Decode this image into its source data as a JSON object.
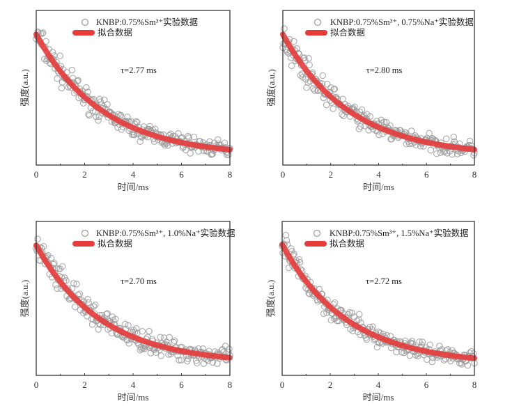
{
  "chart_data": [
    {
      "type": "scatter",
      "xlabel": "时间/ms",
      "ylabel": "强度(a.u.)",
      "xlim": [
        0,
        8
      ],
      "xticks": [
        "0",
        "2",
        "4",
        "6",
        "8"
      ],
      "legend": {
        "placement": "top",
        "entries": [
          "KNBP:0.75%Sm³⁺实验数据",
          "拟合数据"
        ]
      },
      "annotation": "τ=2.77 ms",
      "tau_ms": 2.77,
      "fit": {
        "amplitude": 0.79,
        "offset": 0.055
      },
      "noise": 0.035,
      "colors": {
        "data": "#9a9a9a",
        "fit": "#e63b3b"
      }
    },
    {
      "type": "scatter",
      "xlabel": "时间/ms",
      "ylabel": "强度(a.u.)",
      "xlim": [
        0,
        8
      ],
      "xticks": [
        "0",
        "2",
        "4",
        "6",
        "8"
      ],
      "legend": {
        "placement": "top",
        "entries": [
          "KNBP:0.75%Sm³⁺, 0.75%Na⁺实验数据",
          "拟合数据"
        ]
      },
      "annotation": "τ=2.80 ms",
      "tau_ms": 2.8,
      "fit": {
        "amplitude": 0.79,
        "offset": 0.055
      },
      "noise": 0.035,
      "colors": {
        "data": "#9a9a9a",
        "fit": "#e63b3b"
      }
    },
    {
      "type": "scatter",
      "xlabel": "时间/ms",
      "ylabel": "强度(a.u.)",
      "xlim": [
        0,
        8
      ],
      "xticks": [
        "0",
        "2",
        "4",
        "6",
        "8"
      ],
      "legend": {
        "placement": "top",
        "entries": [
          "KNBP:0.75%Sm³⁺, 1.0%Na⁺实验数据",
          "拟合数据"
        ]
      },
      "annotation": "τ=2.70 ms",
      "tau_ms": 2.7,
      "fit": {
        "amplitude": 0.77,
        "offset": 0.075
      },
      "noise": 0.04,
      "colors": {
        "data": "#9a9a9a",
        "fit": "#e63b3b"
      }
    },
    {
      "type": "scatter",
      "xlabel": "时间/ms",
      "ylabel": "强度(a.u.)",
      "xlim": [
        0,
        8
      ],
      "xticks": [
        "0",
        "2",
        "4",
        "6",
        "8"
      ],
      "legend": {
        "placement": "top",
        "entries": [
          "KNBP:0.75%Sm³⁺, 1.5%Na⁺实验数据",
          "拟合数据"
        ]
      },
      "annotation": "τ=2.72 ms",
      "tau_ms": 2.72,
      "fit": {
        "amplitude": 0.78,
        "offset": 0.07
      },
      "noise": 0.035,
      "colors": {
        "data": "#9a9a9a",
        "fit": "#e63b3b"
      }
    }
  ]
}
